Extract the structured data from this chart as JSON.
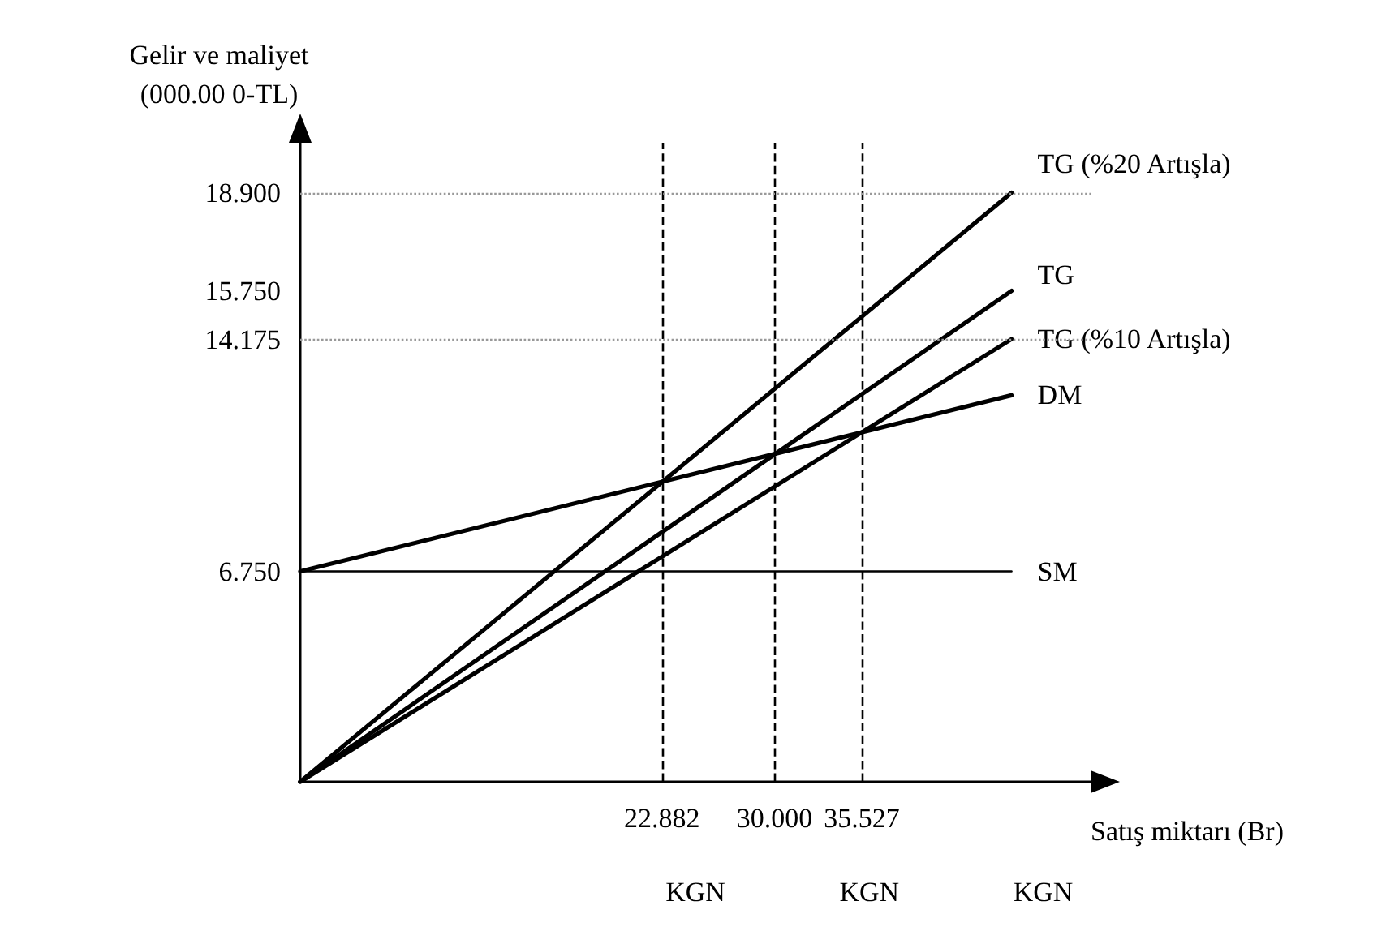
{
  "chart_data": {
    "type": "line",
    "xlabel": "Satış miktarı (Br)",
    "ylabel": "Gelir ve maliyet\n(000.00 0-TL)",
    "xlim": [
      0,
      50
    ],
    "ylim": [
      0,
      20.5
    ],
    "xticks": [
      22.882,
      {
        "value": 30,
        "label": "30.000"
      },
      35.527
    ],
    "yticks": [
      {
        "value": 6.75,
        "label": "6.750"
      },
      14.175,
      {
        "value": 15.75,
        "label": "15.750"
      },
      {
        "value": 18.9,
        "label": "18.900"
      }
    ],
    "x": [
      0,
      45
    ],
    "series": [
      {
        "name": "TG (%20 Artışla)",
        "color": "#000000",
        "values": [
          0,
          18.9
        ]
      },
      {
        "name": "TG",
        "color": "#000000",
        "values": [
          0,
          15.75
        ]
      },
      {
        "name": "TG (%10 Artışla)",
        "color": "#000000",
        "values": [
          0,
          14.2
        ]
      },
      {
        "name": "DM",
        "color": "#000000",
        "values": [
          6.75,
          12.4
        ]
      },
      {
        "name": "SM",
        "color": "#000000",
        "values": [
          6.75,
          6.75
        ]
      }
    ],
    "ref_lines": [
      {
        "axis": "x",
        "value": 22.882,
        "line_style": "dashed",
        "color": "#000000"
      },
      {
        "axis": "x",
        "value": 30,
        "line_style": "dashed",
        "color": "#000000"
      },
      {
        "axis": "x",
        "value": 35.527,
        "line_style": "dashed",
        "color": "#000000"
      },
      {
        "axis": "y",
        "value": 18.9,
        "line_style": "dotted",
        "color": "#999999"
      },
      {
        "axis": "y",
        "value": 14.175,
        "line_style": "dotted",
        "color": "#999999"
      }
    ],
    "annotations": [
      "KGN",
      "KGN",
      "KGN"
    ],
    "marker": "none",
    "line_style": "solid",
    "grid": false,
    "legend": false
  }
}
